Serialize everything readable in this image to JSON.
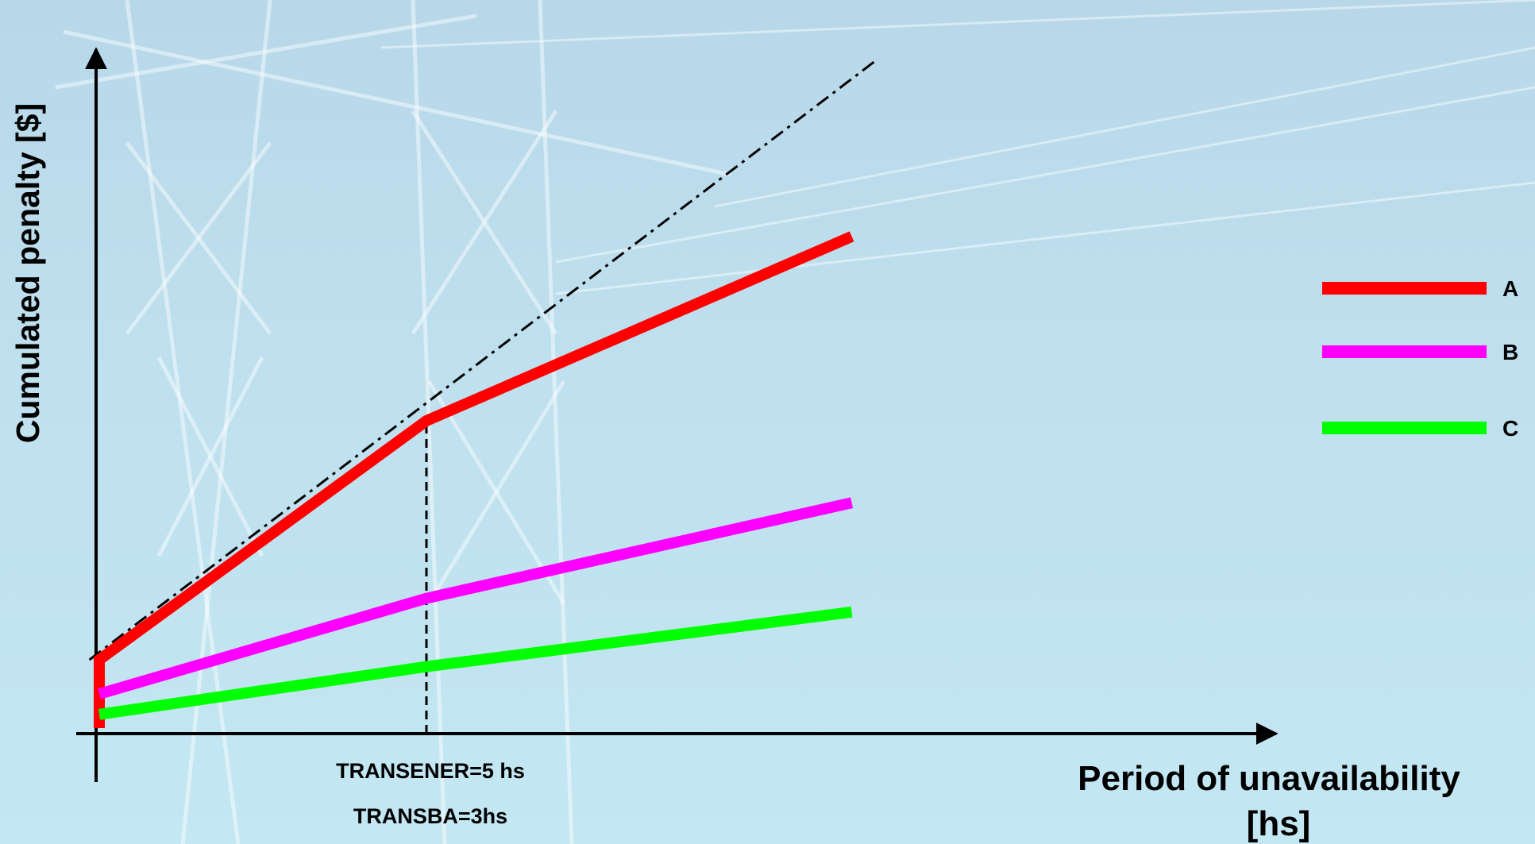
{
  "chart_data": {
    "type": "line",
    "ylabel": "Cumulated penalty [$]",
    "xlabel_line1": "Period of unavailability",
    "xlabel_line2": "[hs]",
    "annotations": [
      "TRANSENER=5 hs",
      "TRANSBA=3hs"
    ],
    "x_marker": 1,
    "xlim": [
      0,
      3
    ],
    "ylim": [
      0,
      1
    ],
    "grid": false,
    "legend_position": "right",
    "series": [
      {
        "name": "A",
        "color": "#ff0000",
        "points": [
          [
            0,
            0.0
          ],
          [
            0,
            0.1
          ],
          [
            1,
            0.45
          ],
          [
            2.3,
            0.72
          ]
        ]
      },
      {
        "name": "B",
        "color": "#ff00ff",
        "points": [
          [
            0,
            0.05
          ],
          [
            1,
            0.19
          ],
          [
            2.3,
            0.33
          ]
        ]
      },
      {
        "name": "C",
        "color": "#00ff00",
        "points": [
          [
            0,
            0.02
          ],
          [
            1,
            0.09
          ],
          [
            2.3,
            0.17
          ]
        ]
      }
    ],
    "reference_line": {
      "style": "dash-dot",
      "color": "#000000",
      "points": [
        [
          -0.03,
          0.1
        ],
        [
          2.38,
          0.98
        ]
      ]
    }
  }
}
